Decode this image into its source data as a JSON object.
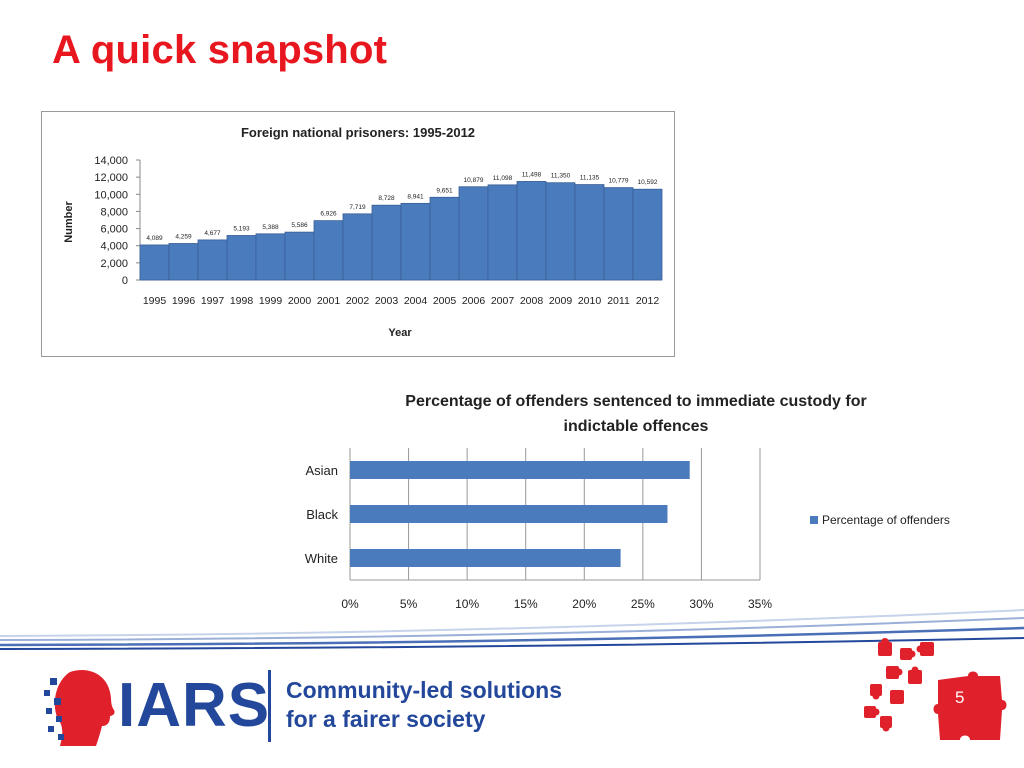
{
  "slide": {
    "title": "A quick snapshot",
    "page_number": "5"
  },
  "logo": {
    "name": "IARS",
    "tagline_line1": "Community-led solutions",
    "tagline_line2": "for a fairer society"
  },
  "colors": {
    "title_red": "#e8161e",
    "bar_blue": "#4a7bbd",
    "brand_blue": "#23479a",
    "puzzle_red": "#e0202a"
  },
  "chart_data": [
    {
      "type": "bar",
      "title": "Foreign national prisoners: 1995-2012",
      "xlabel": "Year",
      "ylabel": "Number",
      "ylim": [
        0,
        14000
      ],
      "yticks": [
        "0",
        "2,000",
        "4,000",
        "6,000",
        "8,000",
        "10,000",
        "12,000",
        "14,000"
      ],
      "categories": [
        "1995",
        "1996",
        "1997",
        "1998",
        "1999",
        "2000",
        "2001",
        "2002",
        "2003",
        "2004",
        "2005",
        "2006",
        "2007",
        "2008",
        "2009",
        "2010",
        "2011",
        "2012"
      ],
      "values": [
        4089,
        4259,
        4677,
        5193,
        5388,
        5586,
        6926,
        7719,
        8728,
        8941,
        9651,
        10879,
        11098,
        11498,
        11350,
        11135,
        10779,
        10592
      ],
      "data_labels": [
        "4,089",
        "4,259",
        "4,677",
        "5,193",
        "5,388",
        "5,586",
        "6,926",
        "7,719",
        "8,728",
        "8,941",
        "9,651",
        "10,879",
        "11,098",
        "11,498",
        "11,350",
        "11,135",
        "10,779",
        "10,592"
      ],
      "grid": false
    },
    {
      "type": "bar",
      "orientation": "horizontal",
      "title": "Percentage of offenders sentenced to immediate custody for indictable offences",
      "categories": [
        "Asian",
        "Black",
        "White"
      ],
      "series": [
        {
          "name": "Percentage of offenders",
          "values": [
            29,
            27.1,
            23.1
          ]
        }
      ],
      "xlim": [
        0,
        35
      ],
      "xticks": [
        "0%",
        "5%",
        "10%",
        "15%",
        "20%",
        "25%",
        "30%",
        "35%"
      ],
      "grid": true,
      "legend_position": "right"
    }
  ]
}
